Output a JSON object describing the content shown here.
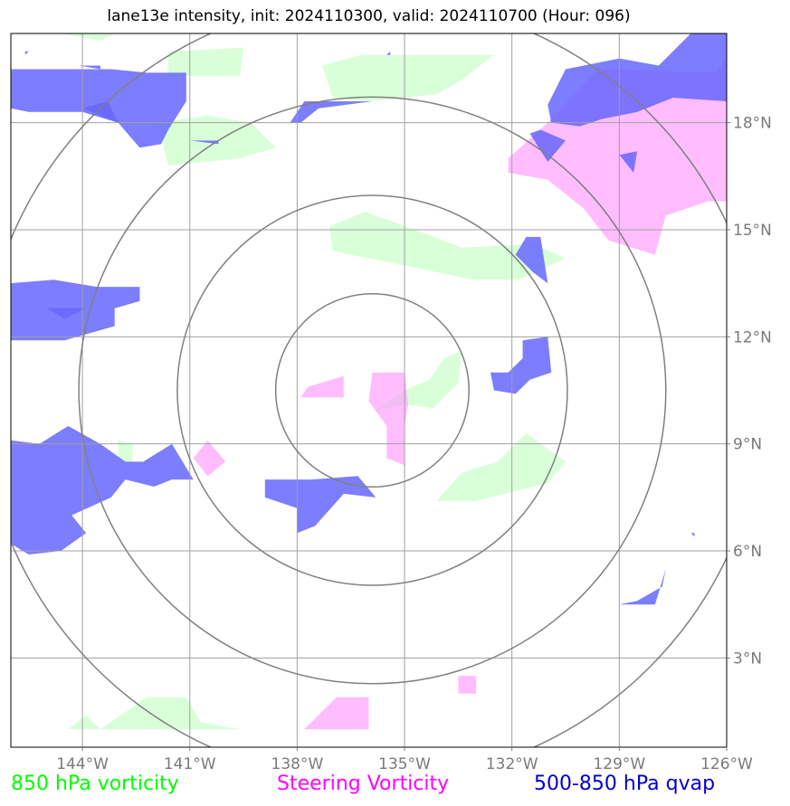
{
  "title": "lane13e intensity, init: 2024110300, valid: 2024110700 (Hour: 096)",
  "legend": [
    {
      "label": "850 hPa vorticity",
      "color": "#00ff00"
    },
    {
      "label": "Steering Vorticity",
      "color": "#ff00ff"
    },
    {
      "label": "500-850 hPa qvap",
      "color": "#0000cc"
    }
  ],
  "chart_data": {
    "type": "heatmap",
    "xlim": [
      -146,
      -126
    ],
    "ylim": [
      0.5,
      20.5
    ],
    "x_ticks": [
      {
        "value": -144,
        "label": "144°W"
      },
      {
        "value": -141,
        "label": "141°W"
      },
      {
        "value": -138,
        "label": "138°W"
      },
      {
        "value": -135,
        "label": "135°W"
      },
      {
        "value": -132,
        "label": "132°W"
      },
      {
        "value": -129,
        "label": "129°W"
      },
      {
        "value": -126,
        "label": "126°W"
      }
    ],
    "y_ticks": [
      {
        "value": 3,
        "label": "3°N"
      },
      {
        "value": 6,
        "label": "6°N"
      },
      {
        "value": 9,
        "label": "9°N"
      },
      {
        "value": 12,
        "label": "12°N"
      },
      {
        "value": 15,
        "label": "15°N"
      },
      {
        "value": 18,
        "label": "18°N"
      }
    ],
    "grid": true,
    "range_rings": {
      "center": [
        -135.9,
        10.5
      ],
      "radii_deg": [
        2.7,
        5.45,
        8.2,
        10.95
      ]
    },
    "layers": [
      {
        "name": "850 hPa vorticity",
        "color": "#ccffcc",
        "opacity": 0.75,
        "polygons": [
          [
            [
              -144.6,
              20.5
            ],
            [
              -143.5,
              20.3
            ],
            [
              -143.1,
              20.5
            ]
          ],
          [
            [
              -141.6,
              20.0
            ],
            [
              -139.5,
              20.1
            ],
            [
              -139.6,
              19.3
            ],
            [
              -141.6,
              19.3
            ]
          ],
          [
            [
              -137.3,
              19.6
            ],
            [
              -136.2,
              19.9
            ],
            [
              -134.5,
              19.9
            ],
            [
              -132.5,
              19.9
            ],
            [
              -133.4,
              19.2
            ],
            [
              -134.1,
              18.8
            ],
            [
              -136.0,
              18.6
            ],
            [
              -137.0,
              18.7
            ]
          ],
          [
            [
              -141.9,
              18.0
            ],
            [
              -140.5,
              18.2
            ],
            [
              -139.3,
              18.0
            ],
            [
              -138.6,
              17.3
            ],
            [
              -139.6,
              17.0
            ],
            [
              -141.6,
              16.8
            ]
          ],
          [
            [
              -137.1,
              15.1
            ],
            [
              -136.1,
              15.5
            ],
            [
              -134.7,
              15.0
            ],
            [
              -133.4,
              14.5
            ],
            [
              -131.4,
              14.6
            ],
            [
              -130.5,
              14.2
            ],
            [
              -131.8,
              13.6
            ],
            [
              -133.1,
              13.6
            ],
            [
              -135.0,
              14.0
            ],
            [
              -137.0,
              14.4
            ]
          ],
          [
            [
              -143.0,
              9.1
            ],
            [
              -142.6,
              9.0
            ],
            [
              -142.6,
              8.4
            ],
            [
              -143.0,
              8.6
            ]
          ],
          [
            [
              -135.0,
              10.5
            ],
            [
              -134.3,
              10.8
            ],
            [
              -133.9,
              11.4
            ],
            [
              -133.4,
              11.6
            ],
            [
              -133.5,
              10.7
            ],
            [
              -134.2,
              10.0
            ],
            [
              -135.0,
              10.1
            ],
            [
              -135.9,
              9.9
            ]
          ],
          [
            [
              -134.1,
              7.4
            ],
            [
              -133.4,
              8.2
            ],
            [
              -132.4,
              8.5
            ],
            [
              -131.6,
              9.3
            ],
            [
              -130.5,
              8.5
            ],
            [
              -131.0,
              7.9
            ],
            [
              -133.0,
              7.4
            ]
          ],
          [
            [
              -144.4,
              1.0
            ],
            [
              -143.9,
              1.4
            ],
            [
              -143.5,
              1.0
            ]
          ],
          [
            [
              -143.5,
              1.0
            ],
            [
              -142.2,
              1.9
            ],
            [
              -141.1,
              1.9
            ],
            [
              -140.7,
              1.2
            ],
            [
              -139.6,
              1.0
            ]
          ]
        ]
      },
      {
        "name": "Steering Vorticity",
        "color": "#ff99ff",
        "opacity": 0.65,
        "polygons": [
          [
            [
              -126,
              19.8
            ],
            [
              -126.3,
              19.4
            ],
            [
              -129.6,
              19.5
            ],
            [
              -131.0,
              18.0
            ],
            [
              -132.1,
              17.0
            ],
            [
              -132.1,
              16.6
            ],
            [
              -131.0,
              16.4
            ],
            [
              -130.0,
              15.6
            ],
            [
              -129.3,
              14.7
            ],
            [
              -128.0,
              14.3
            ],
            [
              -127.7,
              15.4
            ],
            [
              -126.5,
              15.8
            ],
            [
              -126,
              15.8
            ]
          ],
          [
            [
              -137.7,
              10.6
            ],
            [
              -136.7,
              10.9
            ],
            [
              -136.7,
              10.3
            ],
            [
              -137.9,
              10.3
            ]
          ],
          [
            [
              -135.9,
              11.0
            ],
            [
              -135.0,
              11.0
            ],
            [
              -134.9,
              10.1
            ],
            [
              -135.0,
              9.5
            ],
            [
              -135.0,
              8.4
            ],
            [
              -135.5,
              8.6
            ],
            [
              -135.5,
              9.5
            ],
            [
              -136.0,
              10.2
            ]
          ],
          [
            [
              -140.5,
              9.1
            ],
            [
              -140.0,
              8.5
            ],
            [
              -140.5,
              8.1
            ],
            [
              -140.9,
              8.6
            ]
          ],
          [
            [
              -137.8,
              1.0
            ],
            [
              -136.9,
              1.9
            ],
            [
              -136.0,
              1.9
            ],
            [
              -136.0,
              1.0
            ]
          ],
          [
            [
              -134.5,
              2.0
            ],
            [
              -133.5,
              2.0
            ],
            [
              -133.5,
              2.5
            ],
            [
              -133.0,
              2.5
            ],
            [
              -133.0,
              2.0
            ]
          ]
        ]
      },
      {
        "name": "500-850 hPa qvap",
        "color": "#6666ff",
        "opacity": 0.85,
        "polygons": [
          [
            [
              -145.5,
              20.0
            ],
            [
              -145.6,
              20.0
            ],
            [
              -145.6,
              19.9
            ]
          ],
          [
            [
              -144.1,
              19.6
            ],
            [
              -143.5,
              19.6
            ],
            [
              -143.5,
              19.5
            ]
          ],
          [
            [
              -135.5,
              19.9
            ],
            [
              -135.4,
              20.0
            ],
            [
              -135.4,
              19.9
            ]
          ],
          [
            [
              -146,
              19.5
            ],
            [
              -144.1,
              19.5
            ],
            [
              -143.2,
              19.5
            ],
            [
              -142.2,
              19.4
            ],
            [
              -141.1,
              19.4
            ],
            [
              -141.1,
              18.6
            ],
            [
              -141.6,
              17.8
            ],
            [
              -141.8,
              17.4
            ],
            [
              -142.4,
              17.3
            ],
            [
              -143.0,
              18.0
            ],
            [
              -144.0,
              18.3
            ],
            [
              -145.5,
              18.3
            ],
            [
              -146,
              18.4
            ]
          ],
          [
            [
              -144.0,
              18.4
            ],
            [
              -143.3,
              18.6
            ],
            [
              -143.0,
              18.0
            ]
          ],
          [
            [
              -139.5,
              18.0
            ],
            [
              -138.2,
              18.0
            ],
            [
              -137.8,
              18.6
            ],
            [
              -137.1,
              18.6
            ],
            [
              -135.9,
              18.6
            ],
            [
              -137.4,
              18.4
            ],
            [
              -137.9,
              18.0
            ],
            [
              -139.6,
              18.0
            ]
          ],
          [
            [
              -141.0,
              17.5
            ],
            [
              -140.2,
              17.5
            ],
            [
              -140.2,
              17.4
            ]
          ],
          [
            [
              -126,
              20.5
            ],
            [
              -127.0,
              20.5
            ],
            [
              -127.9,
              19.6
            ],
            [
              -129.0,
              19.8
            ],
            [
              -130.5,
              19.5
            ],
            [
              -131.0,
              18.5
            ],
            [
              -130.9,
              18.0
            ],
            [
              -130.1,
              17.9
            ],
            [
              -129.5,
              18.1
            ],
            [
              -128.5,
              18.3
            ],
            [
              -127.5,
              18.7
            ],
            [
              -126.0,
              18.6
            ]
          ],
          [
            [
              -131.5,
              17.7
            ],
            [
              -131.2,
              17.8
            ],
            [
              -130.5,
              17.5
            ],
            [
              -131.0,
              16.9
            ]
          ],
          [
            [
              -129.0,
              17.1
            ],
            [
              -128.5,
              17.2
            ],
            [
              -128.6,
              16.6
            ]
          ],
          [
            [
              -131.9,
              14.3
            ],
            [
              -131.4,
              13.8
            ],
            [
              -131.0,
              13.5
            ],
            [
              -131.2,
              14.8
            ],
            [
              -131.6,
              14.8
            ]
          ],
          [
            [
              -146,
              13.5
            ],
            [
              -144.8,
              13.6
            ],
            [
              -143.6,
              13.4
            ],
            [
              -142.4,
              13.4
            ],
            [
              -142.4,
              13.0
            ],
            [
              -143.1,
              12.8
            ],
            [
              -143.1,
              12.3
            ],
            [
              -144.5,
              11.9
            ],
            [
              -146,
              11.9
            ]
          ],
          [
            [
              -145.0,
              12.8
            ],
            [
              -144.5,
              12.5
            ],
            [
              -143.9,
              12.8
            ]
          ],
          [
            [
              -131.7,
              11.9
            ],
            [
              -131.0,
              12.0
            ],
            [
              -130.9,
              11.0
            ],
            [
              -131.5,
              10.8
            ],
            [
              -131.9,
              10.4
            ],
            [
              -132.5,
              10.5
            ],
            [
              -132.6,
              11.0
            ],
            [
              -132.1,
              11.0
            ],
            [
              -131.7,
              11.4
            ]
          ],
          [
            [
              -146,
              9.1
            ],
            [
              -145.2,
              9.0
            ],
            [
              -144.4,
              9.5
            ],
            [
              -143.5,
              9.0
            ],
            [
              -142.8,
              8.5
            ],
            [
              -142.3,
              8.5
            ],
            [
              -141.5,
              9.0
            ],
            [
              -140.9,
              8.0
            ],
            [
              -140.5,
              8.0
            ],
            [
              -141.5,
              8.0
            ],
            [
              -142.0,
              7.8
            ],
            [
              -142.8,
              8.0
            ],
            [
              -143.2,
              7.5
            ],
            [
              -144.3,
              7.0
            ],
            [
              -143.9,
              6.5
            ],
            [
              -144.6,
              6.0
            ],
            [
              -145.5,
              5.9
            ],
            [
              -146,
              6.2
            ]
          ],
          [
            [
              -138.9,
              8.0
            ],
            [
              -137.6,
              8.0
            ],
            [
              -136.3,
              8.1
            ],
            [
              -135.8,
              7.5
            ],
            [
              -136.7,
              7.6
            ],
            [
              -137.5,
              6.7
            ],
            [
              -138.0,
              6.5
            ],
            [
              -138.0,
              7.2
            ],
            [
              -138.9,
              7.5
            ]
          ],
          [
            [
              -129.0,
              4.5
            ],
            [
              -128.0,
              4.5
            ],
            [
              -127.7,
              5.5
            ],
            [
              -127.8,
              5.0
            ],
            [
              -128.5,
              4.6
            ]
          ],
          [
            [
              -127.0,
              6.5
            ],
            [
              -126.9,
              6.5
            ],
            [
              -126.9,
              6.4
            ]
          ]
        ]
      }
    ]
  }
}
